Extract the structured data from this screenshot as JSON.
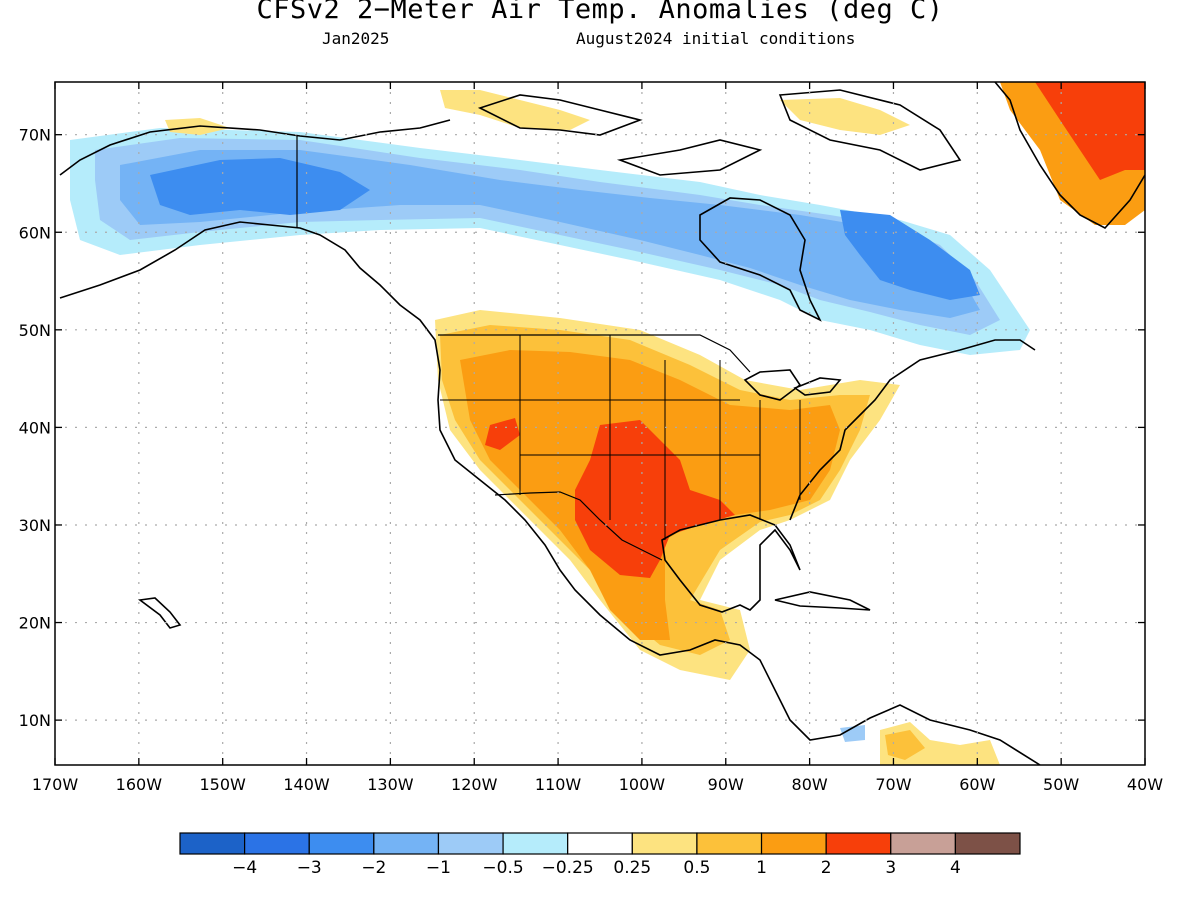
{
  "title": "CFSv2 2−Meter Air Temp. Anomalies (deg C)",
  "valid_month": "Jan2025",
  "initial_conditions": "August2024 initial conditions",
  "map": {
    "lat_labels": [
      {
        "lat": 70,
        "label": "70N"
      },
      {
        "lat": 60,
        "label": "60N"
      },
      {
        "lat": 50,
        "label": "50N"
      },
      {
        "lat": 40,
        "label": "40N"
      },
      {
        "lat": 30,
        "label": "30N"
      },
      {
        "lat": 20,
        "label": "20N"
      },
      {
        "lat": 10,
        "label": "10N"
      }
    ],
    "lon_labels": [
      {
        "lon": -170,
        "label": "170W"
      },
      {
        "lon": -160,
        "label": "160W"
      },
      {
        "lon": -150,
        "label": "150W"
      },
      {
        "lon": -140,
        "label": "140W"
      },
      {
        "lon": -130,
        "label": "130W"
      },
      {
        "lon": -120,
        "label": "120W"
      },
      {
        "lon": -110,
        "label": "110W"
      },
      {
        "lon": -100,
        "label": "100W"
      },
      {
        "lon": -90,
        "label": "90W"
      },
      {
        "lon": -80,
        "label": "80W"
      },
      {
        "lon": -70,
        "label": "70W"
      },
      {
        "lon": -60,
        "label": "60W"
      },
      {
        "lon": -50,
        "label": "50W"
      },
      {
        "lon": -40,
        "label": "40W"
      }
    ]
  },
  "colorbar": {
    "colors": [
      "#1c62c8",
      "#2b73e6",
      "#3d8df0",
      "#74b3f5",
      "#9dcbf7",
      "#b5ecfb",
      "#ffffff",
      "#fde380",
      "#fcc13a",
      "#fb9d12",
      "#f73f0a",
      "#c8a097",
      "#7d5147"
    ],
    "labels": [
      "−4",
      "−3",
      "−2",
      "−1",
      "−0.5",
      "−0.25",
      "0.25",
      "0.5",
      "1",
      "2",
      "3",
      "4"
    ]
  },
  "colors": {
    "frame": "#000000",
    "coast": "#000000",
    "grid": "#aaaaaa"
  }
}
